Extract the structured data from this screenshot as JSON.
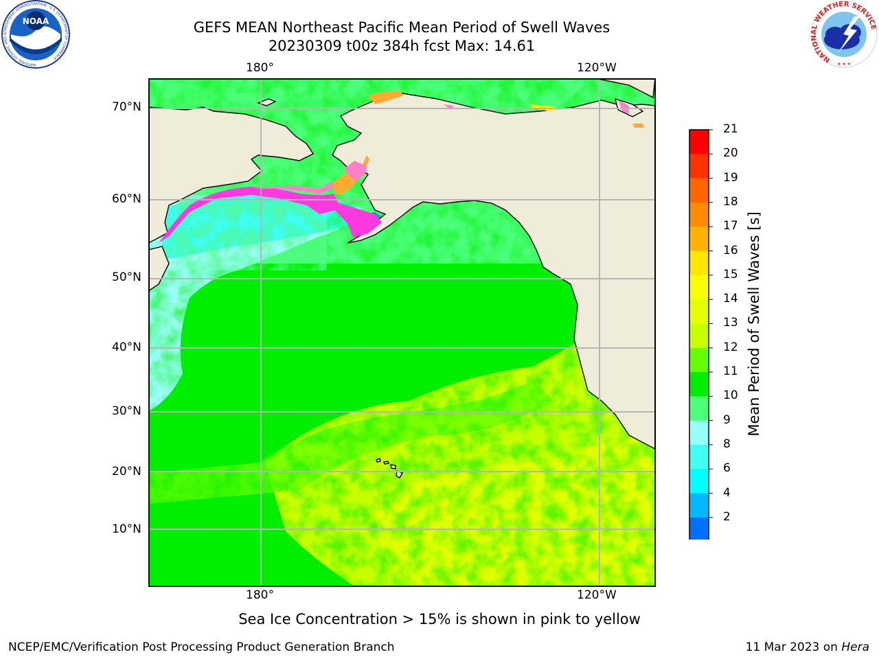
{
  "header": {
    "title_line1": "GEFS MEAN Northeast Pacific Mean Period of Swell Waves",
    "title_line2": "20230309 t00z 384h fcst   Max: 14.61"
  },
  "map": {
    "top_lon_labels": [
      "180°",
      "120°W"
    ],
    "bottom_lon_labels": [
      "180°",
      "120°W"
    ],
    "lat_labels": [
      "70°N",
      "60°N",
      "50°N",
      "40°N",
      "30°N",
      "20°N",
      "10°N"
    ],
    "colors": {
      "land": "#efecd9",
      "grid": "#b5b5b5",
      "coast": "#000000",
      "ice_pink": "#ff7fc8",
      "ice_magenta": "#ff39e0",
      "ice_orange": "#ffaa30",
      "ice_yellow": "#fff000"
    }
  },
  "colorbar": {
    "label": "Mean Period of Swell Waves [s]",
    "ticks": [
      "21",
      "20",
      "19",
      "18",
      "17",
      "16",
      "15",
      "14",
      "13",
      "12",
      "11",
      "10",
      "9",
      "8",
      "6",
      "4",
      "2"
    ],
    "colors": [
      "#ff0000",
      "#ff3300",
      "#ff6600",
      "#ff8c00",
      "#ffb300",
      "#ffe600",
      "#f7ff00",
      "#e3ff00",
      "#c8ff00",
      "#66ff00",
      "#00ee00",
      "#4cff7a",
      "#98fff6",
      "#3ffff3",
      "#00ffff",
      "#00b8ff",
      "#0070ff"
    ],
    "under_color": "#0000ff"
  },
  "logos": {
    "noaa_text": "NOAA",
    "noaa_ring_text": "NATIONAL OCEANIC AND ATMOSPHERIC ADMINISTRATION · U.S. DEPARTMENT OF COMMERCE",
    "nws_ring_text": "NATIONAL WEATHER SERVICE"
  },
  "footer": {
    "note": "Sea Ice Concentration > 15% is shown in pink to yellow",
    "left": "NCEP/EMC/Verification Post Processing Product Generation Branch",
    "right_date": "11 Mar 2023 on ",
    "right_host": "Hera"
  }
}
